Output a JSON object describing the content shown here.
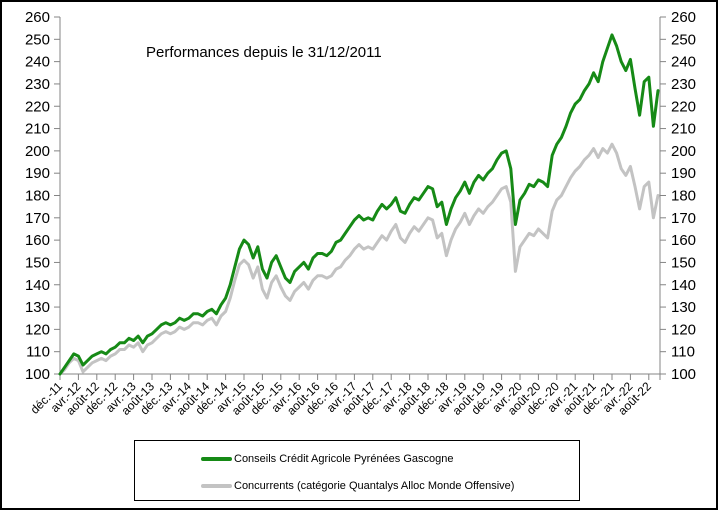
{
  "chart_data": {
    "type": "line",
    "title": "Performances depuis le 31/12/2011",
    "xlabel": "",
    "ylabel": "",
    "ylim": [
      100,
      260
    ],
    "y_tick_step": 10,
    "y_ticks": [
      100,
      110,
      120,
      130,
      140,
      150,
      160,
      170,
      180,
      190,
      200,
      210,
      220,
      230,
      240,
      250,
      260
    ],
    "y_axis_sides": [
      "left",
      "right"
    ],
    "grid": false,
    "legend_position": "bottom-boxed",
    "x_tick_labels": [
      "déc.-11",
      "avr.-12",
      "août-12",
      "déc.-12",
      "avr.-13",
      "août-13",
      "déc.-13",
      "avr.-14",
      "août-14",
      "déc.-14",
      "avr.-15",
      "août-15",
      "déc.-15",
      "avr.-16",
      "août-16",
      "déc.-16",
      "avr.-17",
      "août-17",
      "déc.-17",
      "avr.-18",
      "août-18",
      "déc.-18",
      "avr.-19",
      "août-19",
      "déc.-19",
      "avr.-20",
      "août-20",
      "déc.-20",
      "avr.-21",
      "août-21",
      "déc.-21",
      "avr.-22",
      "août-22"
    ],
    "months_per_point": 1,
    "points_per_x_tick": 4,
    "axis_color": "#848484",
    "series": [
      {
        "name": "Concurrents (catégorie Quantalys Alloc Monde Offensive)",
        "color": "#C3C3C3",
        "values": [
          100,
          102,
          105,
          107,
          106,
          101,
          103,
          105,
          106,
          107,
          106,
          108,
          109,
          111,
          111,
          113,
          112,
          114,
          110,
          113,
          114,
          116,
          118,
          119,
          118,
          119,
          121,
          120,
          121,
          123,
          123,
          122,
          124,
          125,
          122,
          126,
          128,
          134,
          142,
          149,
          151,
          149,
          143,
          148,
          138,
          134,
          141,
          144,
          139,
          135,
          133,
          137,
          139,
          141,
          138,
          142,
          144,
          144,
          143,
          144,
          147,
          148,
          151,
          153,
          156,
          158,
          156,
          157,
          156,
          159,
          162,
          160,
          164,
          167,
          161,
          159,
          163,
          166,
          164,
          167,
          170,
          169,
          161,
          163,
          153,
          160,
          165,
          168,
          172,
          167,
          171,
          174,
          172,
          175,
          177,
          180,
          183,
          184,
          177,
          146,
          157,
          160,
          163,
          162,
          165,
          163,
          161,
          173,
          178,
          180,
          184,
          188,
          191,
          193,
          196,
          198,
          201,
          197,
          201,
          199,
          203,
          199,
          192,
          189,
          193,
          184,
          174,
          184,
          186,
          170,
          180
        ]
      },
      {
        "name": "Conseils Crédit Agricole Pyrénées Gascogne",
        "color": "#168A16",
        "values": [
          100,
          103,
          106,
          109,
          108,
          104,
          106,
          108,
          109,
          110,
          109,
          111,
          112,
          114,
          114,
          116,
          115,
          117,
          114,
          117,
          118,
          120,
          122,
          123,
          122,
          123,
          125,
          124,
          125,
          127,
          127,
          126,
          128,
          129,
          127,
          131,
          134,
          140,
          148,
          156,
          160,
          158,
          152,
          157,
          147,
          143,
          150,
          153,
          148,
          143,
          141,
          146,
          148,
          150,
          147,
          152,
          154,
          154,
          153,
          155,
          159,
          160,
          163,
          166,
          169,
          171,
          169,
          170,
          169,
          173,
          176,
          174,
          176,
          179,
          173,
          172,
          176,
          179,
          178,
          181,
          184,
          183,
          175,
          177,
          167,
          174,
          179,
          182,
          186,
          181,
          186,
          189,
          187,
          190,
          192,
          196,
          199,
          200,
          192,
          167,
          178,
          181,
          185,
          184,
          187,
          186,
          184,
          198,
          203,
          206,
          211,
          217,
          221,
          223,
          227,
          230,
          235,
          231,
          240,
          246,
          252,
          247,
          240,
          236,
          241,
          228,
          216,
          231,
          233,
          211,
          227
        ]
      }
    ],
    "legend": [
      {
        "label": "Conseils Crédit Agricole Pyrénées Gascogne",
        "color": "#168A16"
      },
      {
        "label": "Concurrents (catégorie Quantalys Alloc Monde Offensive)",
        "color": "#C3C3C3"
      }
    ]
  }
}
